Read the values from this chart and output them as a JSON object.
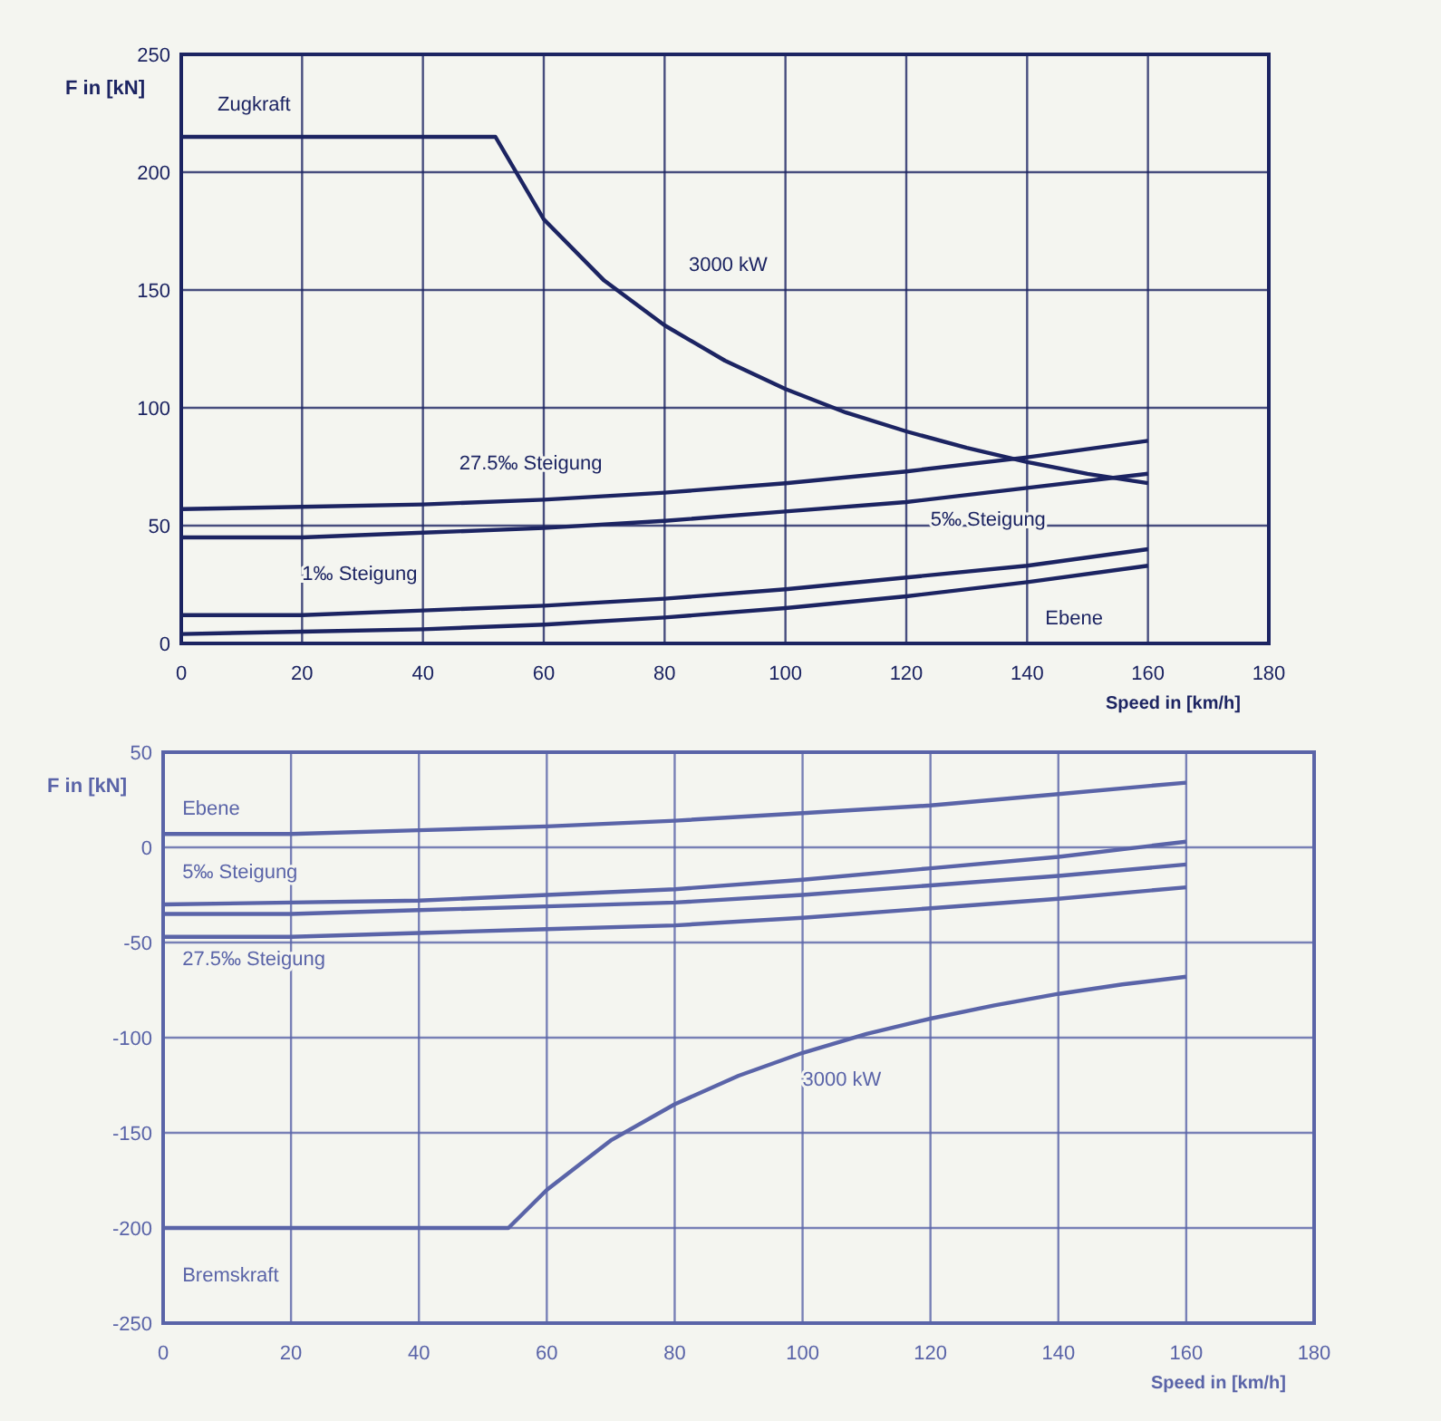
{
  "chart_data": [
    {
      "type": "line",
      "ylabel": "F in [kN]",
      "xlabel": "Speed in [km/h]",
      "xlim": [
        0,
        180
      ],
      "xticks": [
        0,
        20,
        40,
        60,
        80,
        100,
        120,
        140,
        160,
        180
      ],
      "ylim": [
        0,
        250
      ],
      "yticks": [
        0,
        50,
        100,
        150,
        200,
        250
      ],
      "grid": true,
      "x": [
        0,
        20,
        40,
        60,
        80,
        100,
        120,
        140,
        160
      ],
      "series": [
        {
          "color": "#1c2462",
          "x": [
            0,
            52,
            60,
            70,
            80,
            90,
            100,
            110,
            120,
            130,
            140,
            150,
            160
          ],
          "values": [
            215,
            215,
            180,
            154,
            135,
            120,
            108,
            98,
            90,
            83,
            77,
            72,
            68
          ]
        },
        {
          "color": "#1c2462",
          "values": [
            57,
            58,
            59,
            61,
            64,
            68,
            73,
            79,
            86
          ]
        },
        {
          "color": "#1c2462",
          "values": [
            45,
            45,
            47,
            49,
            52,
            56,
            60,
            66,
            72
          ]
        },
        {
          "color": "#1c2462",
          "values": [
            12,
            12,
            14,
            16,
            19,
            23,
            28,
            33,
            40
          ]
        },
        {
          "color": "#1c2462",
          "values": [
            4,
            5,
            6,
            8,
            11,
            15,
            20,
            26,
            33
          ]
        }
      ],
      "annotations": [
        "Zugkraft",
        "3000 kW",
        "27.5‰ Steigung",
        "5‰ Steigung",
        "1‰ Steigung",
        "Ebene"
      ]
    },
    {
      "type": "line",
      "ylabel": "F in [kN]",
      "xlabel": "Speed in [km/h]",
      "xlim": [
        0,
        180
      ],
      "xticks": [
        0,
        20,
        40,
        60,
        80,
        100,
        120,
        140,
        160,
        180
      ],
      "ylim": [
        -250,
        50
      ],
      "yticks": [
        -250,
        -200,
        -150,
        -100,
        -50,
        0,
        50
      ],
      "grid": true,
      "x": [
        0,
        20,
        40,
        60,
        80,
        100,
        120,
        140,
        160
      ],
      "series": [
        {
          "color": "#5a64a8",
          "values": [
            7,
            7,
            9,
            11,
            14,
            18,
            22,
            28,
            34
          ]
        },
        {
          "color": "#5a64a8",
          "values": [
            -30,
            -29,
            -28,
            -25,
            -22,
            -17,
            -11,
            -5,
            3
          ]
        },
        {
          "color": "#5a64a8",
          "values": [
            -35,
            -35,
            -33,
            -31,
            -29,
            -25,
            -20,
            -15,
            -9
          ]
        },
        {
          "color": "#5a64a8",
          "values": [
            -47,
            -47,
            -45,
            -43,
            -41,
            -37,
            -32,
            -27,
            -21
          ]
        },
        {
          "color": "#5a64a8",
          "x": [
            0,
            54,
            60,
            70,
            80,
            90,
            100,
            110,
            120,
            130,
            140,
            150,
            160
          ],
          "values": [
            -200,
            -200,
            -180,
            -154,
            -135,
            -120,
            -108,
            -98,
            -90,
            -83,
            -77,
            -72,
            -68
          ]
        }
      ],
      "annotations": [
        "Ebene",
        "5‰ Steigung",
        "27.5‰ Steigung",
        "3000 kW",
        "Bremskraft"
      ]
    }
  ]
}
